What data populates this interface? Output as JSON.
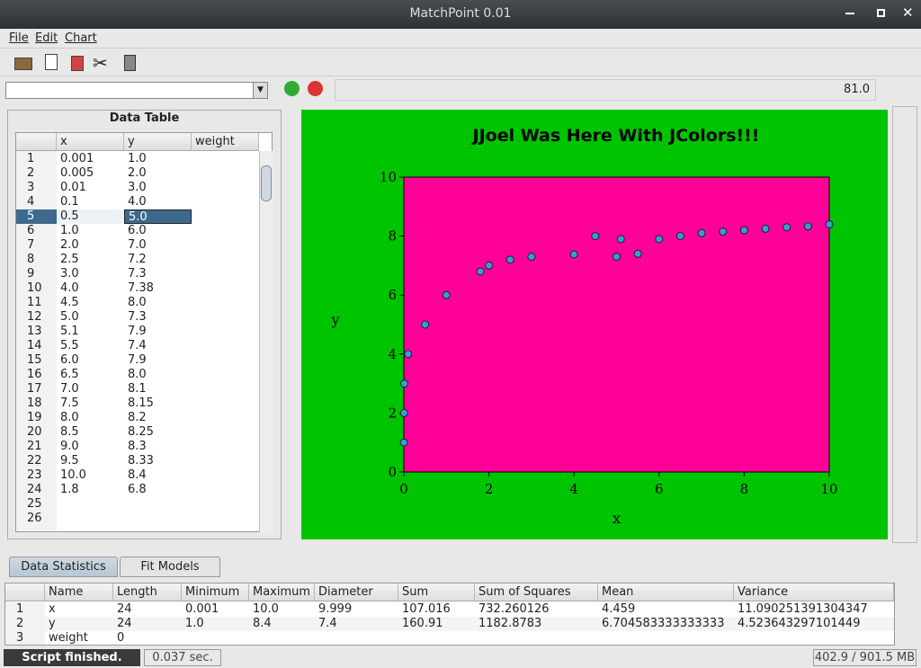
{
  "window": {
    "title": "MatchPoint 0.01"
  },
  "menu": [
    "File",
    "Edit",
    "Chart"
  ],
  "command_bar": {
    "value": "81.0"
  },
  "data_table": {
    "title": "Data Table",
    "columns": [
      "x",
      "y",
      "weight"
    ],
    "row_numbers": [
      1,
      2,
      3,
      4,
      5,
      6,
      7,
      8,
      9,
      10,
      11,
      12,
      13,
      14,
      15,
      16,
      17,
      18,
      19,
      20,
      21,
      22,
      23,
      24,
      25,
      26
    ],
    "selected_row": 5,
    "rows": [
      [
        "0.001",
        "1.0"
      ],
      [
        "0.005",
        "2.0"
      ],
      [
        "0.01",
        "3.0"
      ],
      [
        "0.1",
        "4.0"
      ],
      [
        "0.5",
        "5.0"
      ],
      [
        "1.0",
        "6.0"
      ],
      [
        "2.0",
        "7.0"
      ],
      [
        "2.5",
        "7.2"
      ],
      [
        "3.0",
        "7.3"
      ],
      [
        "4.0",
        "7.38"
      ],
      [
        "4.5",
        "8.0"
      ],
      [
        "5.0",
        "7.3"
      ],
      [
        "5.1",
        "7.9"
      ],
      [
        "5.5",
        "7.4"
      ],
      [
        "6.0",
        "7.9"
      ],
      [
        "6.5",
        "8.0"
      ],
      [
        "7.0",
        "8.1"
      ],
      [
        "7.5",
        "8.15"
      ],
      [
        "8.0",
        "8.2"
      ],
      [
        "8.5",
        "8.25"
      ],
      [
        "9.0",
        "8.3"
      ],
      [
        "9.5",
        "8.33"
      ],
      [
        "10.0",
        "8.4"
      ],
      [
        "1.8",
        "6.8"
      ]
    ]
  },
  "chart_data": {
    "type": "scatter",
    "title": "JJoel Was Here With JColors!!!",
    "x_label": "x",
    "y_label": "y",
    "x": [
      0.001,
      0.005,
      0.01,
      0.1,
      0.5,
      1.0,
      2.0,
      2.5,
      3.0,
      4.0,
      4.5,
      5.0,
      5.1,
      5.5,
      6.0,
      6.5,
      7.0,
      7.5,
      8.0,
      8.5,
      9.0,
      9.5,
      10.0,
      1.8
    ],
    "values": [
      1.0,
      2.0,
      3.0,
      4.0,
      5.0,
      6.0,
      7.0,
      7.2,
      7.3,
      7.38,
      8.0,
      7.3,
      7.9,
      7.4,
      7.9,
      8.0,
      8.1,
      8.15,
      8.2,
      8.25,
      8.3,
      8.33,
      8.4,
      6.8
    ],
    "color": "#3a9ad9",
    "background": "#00c400",
    "plot_background": "#ff0099",
    "xlim": [
      0,
      10
    ],
    "ylim": [
      0,
      10
    ],
    "xticks": [
      0,
      2,
      4,
      6,
      8,
      10
    ],
    "yticks": [
      0,
      2,
      4,
      6,
      8,
      10
    ]
  },
  "statistics": {
    "tabs": [
      "Data Statistics",
      "Fit Models"
    ],
    "columns": [
      "Name",
      "Length",
      "Minimum",
      "Maximum",
      "Diameter",
      "Sum",
      "Sum of Squares",
      "Mean",
      "Variance"
    ],
    "row_numbers": [
      1,
      2,
      3
    ],
    "rows": [
      [
        "x",
        "24",
        "0.001",
        "10.0",
        "9.999",
        "107.016",
        "732.260126",
        "4.459",
        "11.090251391304347"
      ],
      [
        "y",
        "24",
        "1.0",
        "8.4",
        "7.4",
        "160.91",
        "1182.8783",
        "6.704583333333333",
        "4.523643297101449"
      ],
      [
        "weight",
        "0"
      ]
    ]
  },
  "status": {
    "message": "Script finished.",
    "time": "0.037 sec.",
    "memory": "402.9 / 901.5 MB"
  }
}
